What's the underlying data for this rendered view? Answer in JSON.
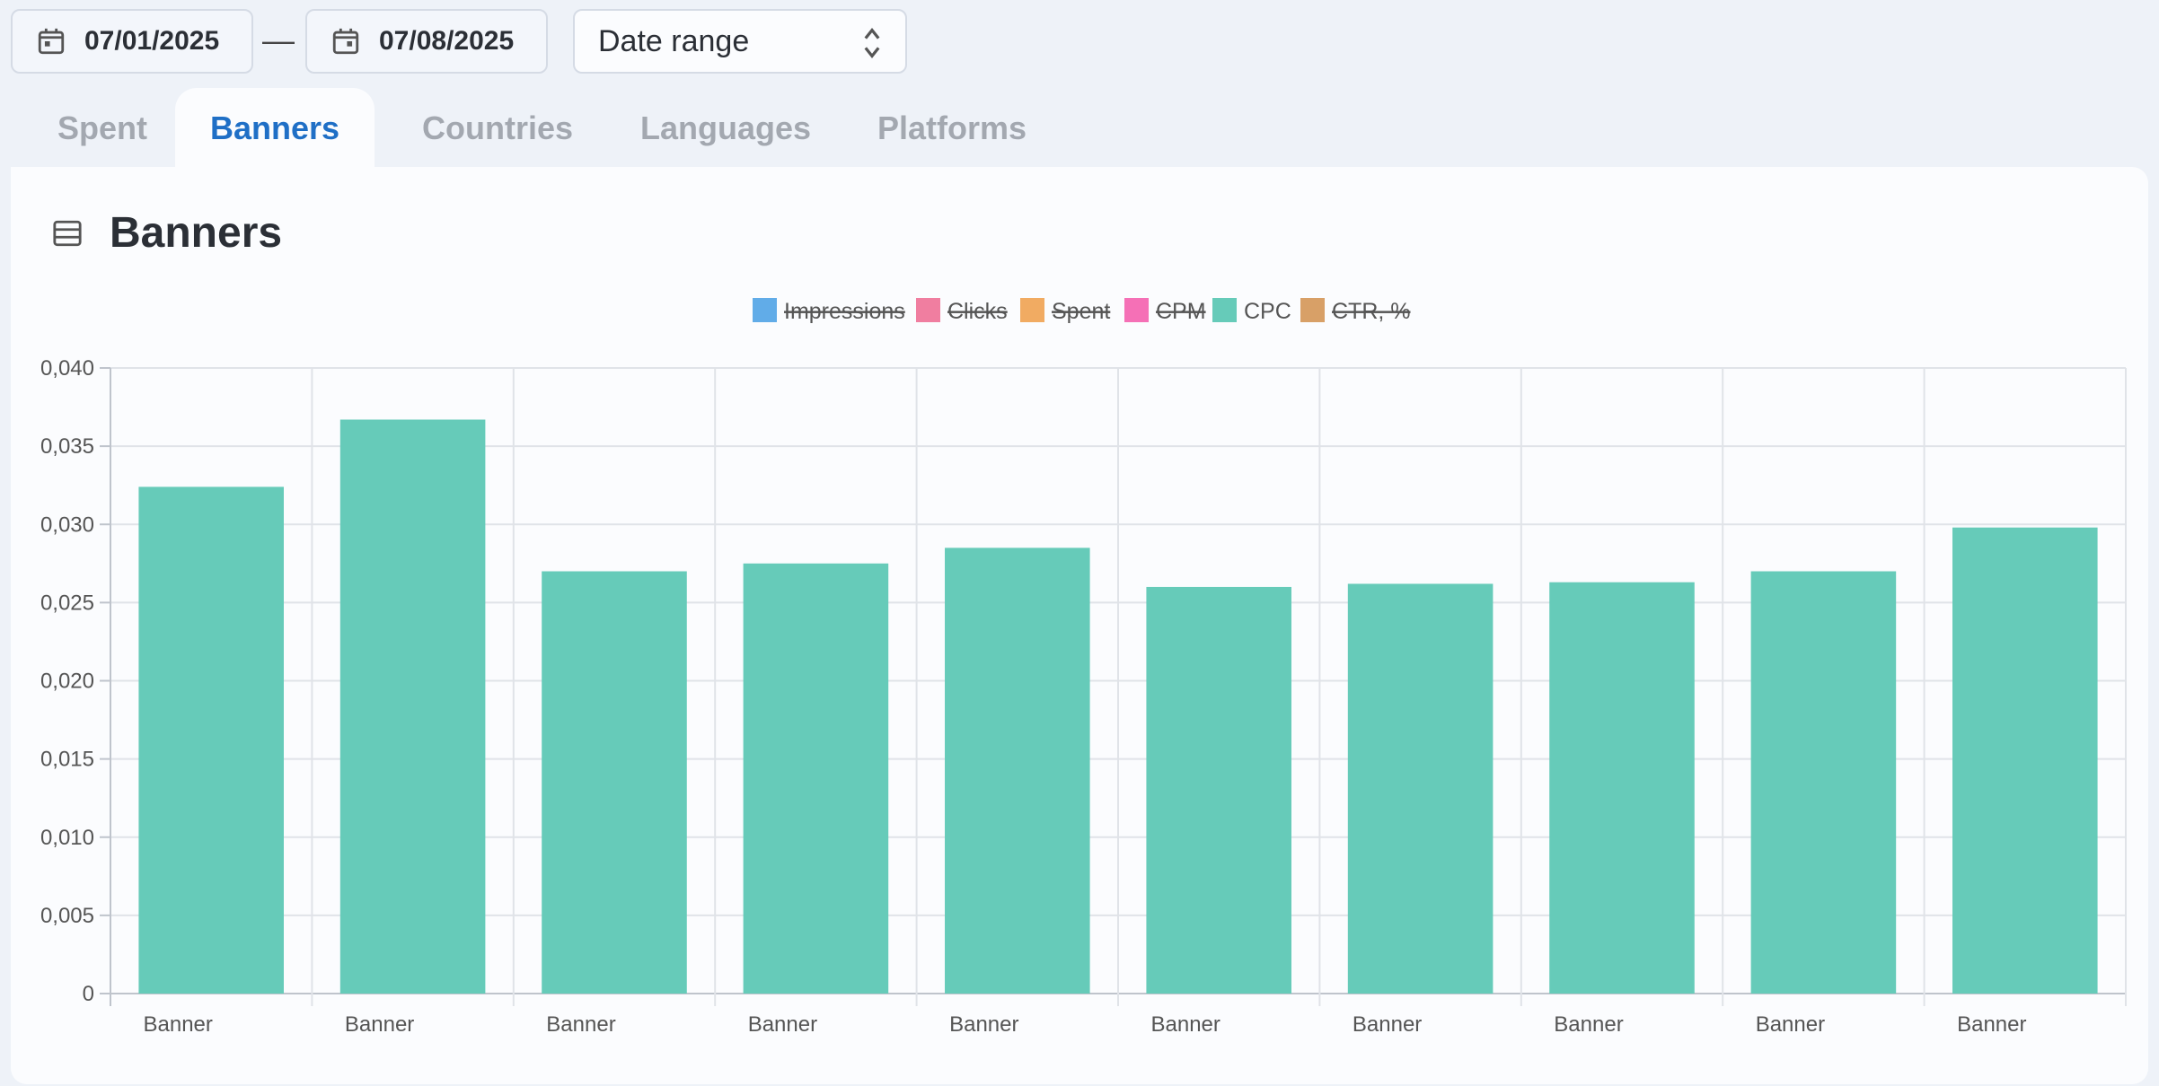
{
  "toolbar": {
    "start_date": "07/01/2025",
    "separator": "—",
    "end_date": "07/08/2025",
    "range_select": "Date range"
  },
  "tabs": [
    {
      "label": "Spent",
      "active": false
    },
    {
      "label": "Banners",
      "active": true
    },
    {
      "label": "Countries",
      "active": false
    },
    {
      "label": "Languages",
      "active": false
    },
    {
      "label": "Platforms",
      "active": false
    }
  ],
  "panel": {
    "title": "Banners",
    "icon": "table-icon"
  },
  "colors": {
    "accent": "#1f6fc6",
    "cpc": "#66cbb9"
  },
  "chart_data": {
    "type": "bar",
    "title": "",
    "legend": [
      {
        "name": "Impressions",
        "color": "#61ace8",
        "hidden": true
      },
      {
        "name": "Clicks",
        "color": "#f07ea0",
        "hidden": true
      },
      {
        "name": "Spent",
        "color": "#f1ab62",
        "hidden": true
      },
      {
        "name": "CPM",
        "color": "#f570b6",
        "hidden": true
      },
      {
        "name": "CPC",
        "color": "#66cbb9",
        "hidden": false
      },
      {
        "name": "CTR, %",
        "color": "#d8a067",
        "hidden": true
      }
    ],
    "legend_position": "top-center",
    "categories": [
      "Banner",
      "Banner",
      "Banner",
      "Banner",
      "Banner",
      "Banner",
      "Banner",
      "Banner",
      "Banner",
      "Banner"
    ],
    "series": [
      {
        "name": "CPC",
        "values": [
          0.0324,
          0.0367,
          0.027,
          0.0275,
          0.0285,
          0.026,
          0.0262,
          0.0263,
          0.027,
          0.0298
        ]
      }
    ],
    "ylim": [
      0,
      0.04
    ],
    "yticks": [
      "0",
      "0,005",
      "0,010",
      "0,015",
      "0,020",
      "0,025",
      "0,030",
      "0,035",
      "0,040"
    ],
    "grid": true
  }
}
